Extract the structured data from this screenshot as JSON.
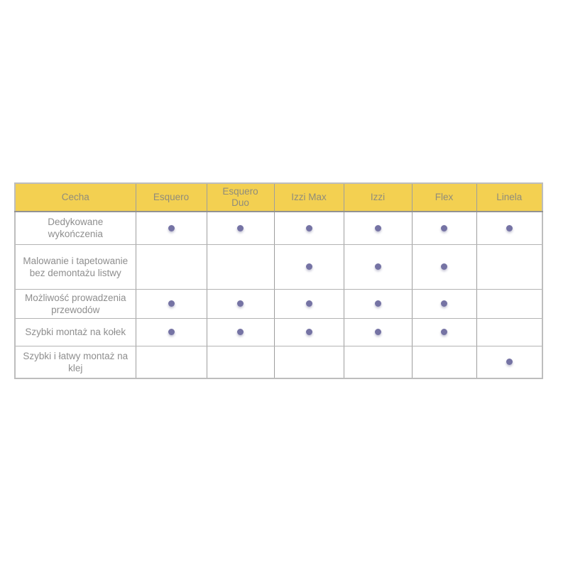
{
  "page": {
    "background": "#ffffff"
  },
  "chart_data": {
    "type": "table",
    "columns": [
      "Cecha",
      "Esquero",
      "Esquero Duo",
      "Izzi Max",
      "Izzi",
      "Flex",
      "Linela"
    ],
    "rows": [
      {
        "feature": "Dedykowane wykończenia",
        "values": [
          true,
          true,
          true,
          true,
          true,
          true
        ]
      },
      {
        "feature": "Malowanie i tapetowanie bez demontażu listwy",
        "values": [
          false,
          false,
          true,
          true,
          true,
          false
        ]
      },
      {
        "feature": "Możliwość prowadzenia przewodów",
        "values": [
          true,
          true,
          true,
          true,
          true,
          false
        ]
      },
      {
        "feature": "Szybki montaż na kołek",
        "values": [
          true,
          true,
          true,
          true,
          true,
          false
        ]
      },
      {
        "feature": "Szybki i łatwy montaż na klej",
        "values": [
          false,
          false,
          false,
          false,
          false,
          true
        ]
      }
    ],
    "dot_marker": "●",
    "colors": {
      "header_background": "#f3d051",
      "header_text": "#8f8c7c",
      "body_text": "#8e8e8e",
      "dot": "#7573a4",
      "border_outer": "#bdbdbd",
      "border_inner_vertical": "#9e9e9e",
      "border_inner_horizontal": "#b3b3b3"
    }
  }
}
